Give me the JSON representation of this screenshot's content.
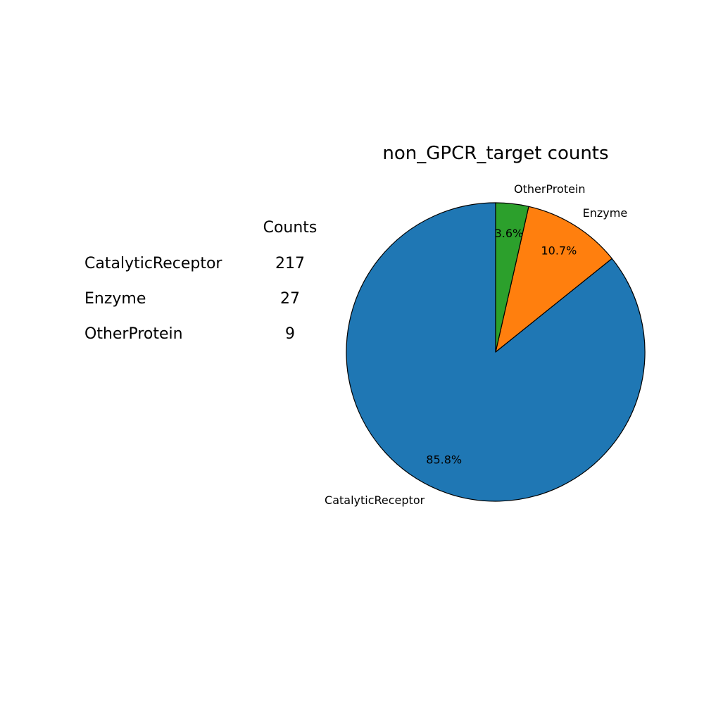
{
  "chart_data": {
    "type": "pie",
    "title": "non_GPCR_target counts",
    "categories": [
      "CatalyticReceptor",
      "Enzyme",
      "OtherProtein"
    ],
    "values": [
      217,
      27,
      9
    ],
    "percent_labels": [
      "85.8%",
      "10.7%",
      "3.6%"
    ],
    "colors": [
      "#1f77b4",
      "#ff7f0e",
      "#2ca02c"
    ],
    "start_angle": "90 degrees, counterclockwise",
    "legend": "none",
    "table": {
      "header": "Counts",
      "rows": [
        {
          "label": "CatalyticReceptor",
          "count": "217"
        },
        {
          "label": "Enzyme",
          "count": "27"
        },
        {
          "label": "OtherProtein",
          "count": "9"
        }
      ]
    }
  }
}
